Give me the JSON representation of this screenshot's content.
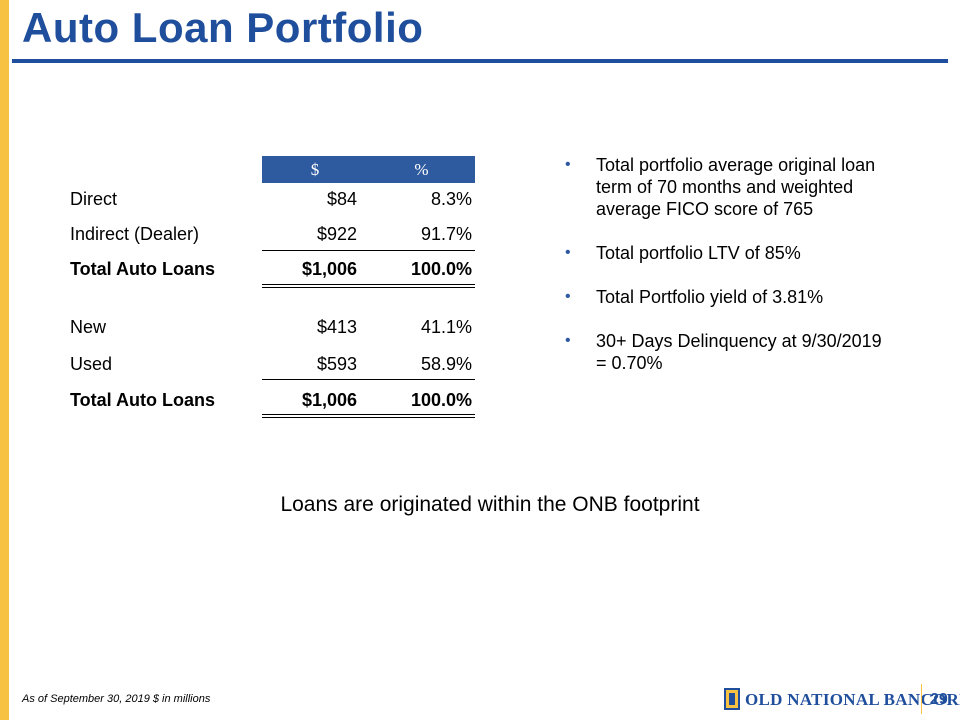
{
  "title": "Auto Loan Portfolio",
  "table": {
    "headers": {
      "dollar": "$",
      "percent": "%"
    },
    "group1": [
      {
        "label": "Direct",
        "dollar": "$84",
        "percent": "8.3%"
      },
      {
        "label": "Indirect (Dealer)",
        "dollar": "$922",
        "percent": "91.7%"
      }
    ],
    "group1_total": {
      "label": "Total Auto Loans",
      "dollar": "$1,006",
      "percent": "100.0%"
    },
    "group2": [
      {
        "label": "New",
        "dollar": "$413",
        "percent": "41.1%"
      },
      {
        "label": "Used",
        "dollar": "$593",
        "percent": "58.9%"
      }
    ],
    "group2_total": {
      "label": "Total Auto Loans",
      "dollar": "$1,006",
      "percent": "100.0%"
    }
  },
  "bullets": [
    "Total portfolio average original loan term of 70 months and weighted average FICO score of 765",
    "Total portfolio LTV of 85%",
    "Total Portfolio yield of 3.81%",
    "30+ Days Delinquency at 9/30/2019 = 0.70%"
  ],
  "bullet_char": "•",
  "center_note": "Loans are originated within the ONB footprint",
  "footnote": "As of September 30, 2019 $ in millions",
  "logo_text": "OLD NATIONAL BANCORP®",
  "page_number": "29",
  "colors": {
    "brand_blue": "#1f4e9c",
    "header_blue": "#2e5aa0",
    "accent_gold": "#f7c241"
  }
}
